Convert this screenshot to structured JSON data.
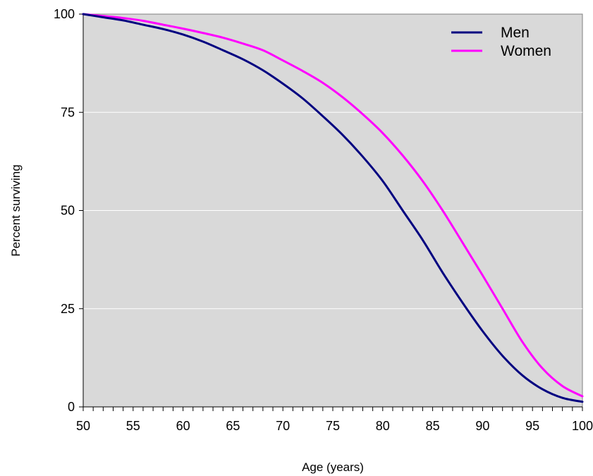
{
  "chart_data": {
    "type": "line",
    "title": "",
    "xlabel": "Age (years)",
    "ylabel": "Percent surviving",
    "xlim": [
      50,
      100
    ],
    "ylim": [
      0,
      100
    ],
    "x_ticks": [
      50,
      55,
      60,
      65,
      70,
      75,
      80,
      85,
      90,
      95,
      100
    ],
    "y_ticks": [
      0,
      25,
      50,
      75,
      100
    ],
    "x_tick_labels": [
      "50",
      "55",
      "60",
      "65",
      "70",
      "75",
      "80",
      "85",
      "90",
      "95",
      "100"
    ],
    "y_tick_labels": [
      "0",
      "25",
      "50",
      "75",
      "100"
    ],
    "grid": "horizontal",
    "plot_background": "#d9d9d9",
    "legend_position": "top-right",
    "x": [
      50,
      52,
      54,
      56,
      58,
      60,
      62,
      64,
      66,
      68,
      70,
      72,
      74,
      76,
      78,
      80,
      82,
      84,
      86,
      88,
      90,
      92,
      94,
      96,
      98,
      100
    ],
    "series": [
      {
        "name": "Men",
        "color": "#000080",
        "values": [
          100,
          99.2,
          98.4,
          97.3,
          96.2,
          94.8,
          93.0,
          90.8,
          88.5,
          85.7,
          82.3,
          78.5,
          74.0,
          69.2,
          63.7,
          57.5,
          50.0,
          42.5,
          34.2,
          26.5,
          19.3,
          13.0,
          8.0,
          4.5,
          2.3,
          1.3
        ]
      },
      {
        "name": "Women",
        "color": "#ff00ff",
        "values": [
          100,
          99.5,
          99.0,
          98.3,
          97.3,
          96.3,
          95.2,
          94.0,
          92.5,
          90.8,
          88.2,
          85.5,
          82.5,
          78.8,
          74.5,
          69.7,
          64.0,
          57.5,
          50.0,
          41.8,
          33.5,
          25.0,
          16.5,
          9.8,
          5.3,
          2.7
        ]
      }
    ]
  }
}
